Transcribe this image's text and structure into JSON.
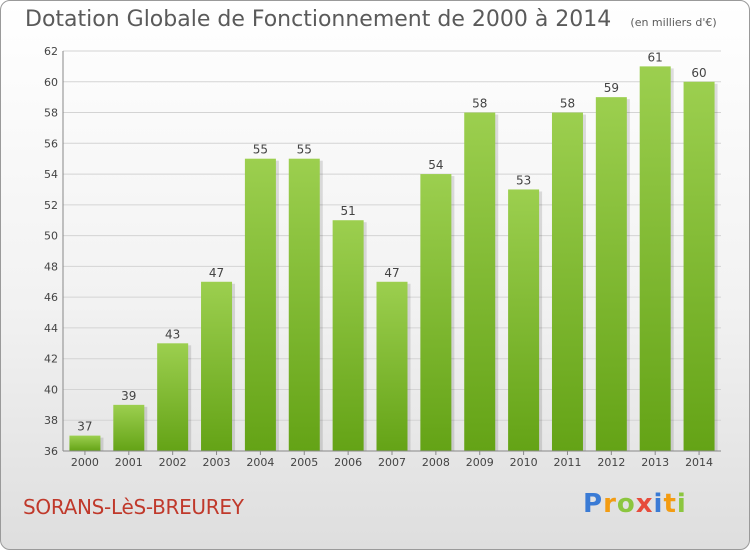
{
  "header": {
    "title": "Dotation Globale de Fonctionnement de 2000 à 2014",
    "subtitle": "(en milliers d'€)"
  },
  "footer": {
    "commune": "SORANS-LèS-BREUREY",
    "logo": {
      "letters": [
        {
          "char": "P",
          "color": "#3a7bd5"
        },
        {
          "char": "r",
          "color": "#f39c12"
        },
        {
          "char": "o",
          "color": "#8cc63f"
        },
        {
          "char": "x",
          "color": "#e74c3c"
        },
        {
          "char": "i",
          "color": "#3a7bd5"
        },
        {
          "char": "t",
          "color": "#f39c12"
        },
        {
          "char": "i",
          "color": "#8cc63f"
        }
      ]
    }
  },
  "colors": {
    "bar_top": "#9ccf4f",
    "bar_bottom": "#64a316",
    "grid": "#d4d4d4",
    "axis_text": "#444444"
  },
  "chart_data": {
    "type": "bar",
    "title": "Dotation Globale de Fonctionnement de 2000 à 2014",
    "subtitle": "(en milliers d'€)",
    "categories": [
      "2000",
      "2001",
      "2002",
      "2003",
      "2004",
      "2005",
      "2006",
      "2007",
      "2008",
      "2009",
      "2010",
      "2011",
      "2012",
      "2013",
      "2014"
    ],
    "values": [
      37,
      39,
      43,
      47,
      55,
      55,
      51,
      47,
      54,
      58,
      53,
      58,
      59,
      61,
      60
    ],
    "ylim": [
      36,
      62
    ],
    "yticks": [
      36,
      38,
      40,
      42,
      44,
      46,
      48,
      50,
      52,
      54,
      56,
      58,
      60,
      62
    ],
    "grid": true,
    "data_labels": true,
    "xlabel": "",
    "ylabel": ""
  }
}
